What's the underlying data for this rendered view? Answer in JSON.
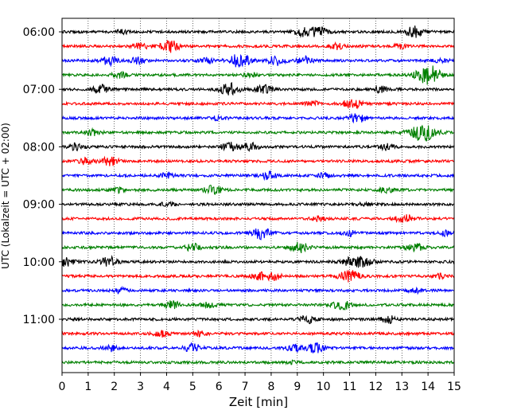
{
  "chart_data": {
    "type": "line",
    "title": "",
    "xlabel": "Zeit  [min]",
    "ylabel": "UTC (Lokalzeit = UTC + 02:00)",
    "xlim": [
      0,
      15
    ],
    "x_ticks": [
      0,
      1,
      2,
      3,
      4,
      5,
      6,
      7,
      8,
      9,
      10,
      11,
      12,
      13,
      14,
      15
    ],
    "grid": "vertical dotted lines at each minute",
    "row_interval_minutes": 15,
    "y_tick_labels": [
      "06:00",
      "07:00",
      "08:00",
      "09:00",
      "10:00",
      "11:00"
    ],
    "color_cycle": [
      "#000000",
      "#ff0000",
      "#0000ff",
      "#008000"
    ],
    "traces": [
      {
        "start": "06:00",
        "color": "#000000",
        "events": [
          [
            2.3,
            0.25
          ],
          [
            9.2,
            0.55
          ],
          [
            9.8,
            0.65
          ],
          [
            13.5,
            0.7
          ]
        ]
      },
      {
        "start": "06:15",
        "color": "#ff0000",
        "events": [
          [
            3.0,
            0.4
          ],
          [
            4.1,
            0.8
          ],
          [
            10.5,
            0.4
          ],
          [
            12.9,
            0.3
          ]
        ]
      },
      {
        "start": "06:30",
        "color": "#0000ff",
        "events": [
          [
            1.8,
            0.55
          ],
          [
            2.9,
            0.4
          ],
          [
            5.6,
            0.4
          ],
          [
            6.8,
            0.9
          ],
          [
            8.2,
            0.6
          ],
          [
            9.3,
            0.5
          ],
          [
            14.5,
            0.3
          ]
        ]
      },
      {
        "start": "06:45",
        "color": "#008000",
        "events": [
          [
            2.2,
            0.4
          ],
          [
            7.2,
            0.3
          ],
          [
            13.9,
            0.9
          ],
          [
            14.2,
            0.6
          ]
        ]
      },
      {
        "start": "07:00",
        "color": "#000000",
        "events": [
          [
            1.5,
            0.55
          ],
          [
            6.4,
            0.8
          ],
          [
            7.7,
            0.6
          ],
          [
            12.2,
            0.4
          ]
        ]
      },
      {
        "start": "07:15",
        "color": "#ff0000",
        "events": [
          [
            9.6,
            0.35
          ],
          [
            11.1,
            0.65
          ]
        ]
      },
      {
        "start": "07:30",
        "color": "#0000ff",
        "events": [
          [
            6.0,
            0.3
          ],
          [
            11.3,
            0.6
          ]
        ]
      },
      {
        "start": "07:45",
        "color": "#008000",
        "events": [
          [
            1.2,
            0.4
          ],
          [
            13.8,
            1.2
          ]
        ]
      },
      {
        "start": "08:00",
        "color": "#000000",
        "events": [
          [
            0.6,
            0.5
          ],
          [
            6.4,
            0.55
          ],
          [
            7.2,
            0.5
          ],
          [
            12.4,
            0.4
          ]
        ]
      },
      {
        "start": "08:15",
        "color": "#ff0000",
        "events": [
          [
            0.9,
            0.4
          ],
          [
            1.8,
            0.6
          ]
        ]
      },
      {
        "start": "08:30",
        "color": "#0000ff",
        "events": [
          [
            4.0,
            0.3
          ],
          [
            7.9,
            0.5
          ],
          [
            10.0,
            0.35
          ]
        ]
      },
      {
        "start": "08:45",
        "color": "#008000",
        "events": [
          [
            2.1,
            0.35
          ],
          [
            5.8,
            0.6
          ],
          [
            12.4,
            0.35
          ]
        ]
      },
      {
        "start": "09:00",
        "color": "#000000",
        "events": [
          [
            4.0,
            0.25
          ],
          [
            11.6,
            0.25
          ]
        ]
      },
      {
        "start": "09:15",
        "color": "#ff0000",
        "events": [
          [
            9.8,
            0.3
          ],
          [
            13.1,
            0.6
          ]
        ]
      },
      {
        "start": "09:30",
        "color": "#0000ff",
        "events": [
          [
            7.6,
            0.75
          ],
          [
            11.0,
            0.35
          ],
          [
            14.7,
            0.35
          ]
        ]
      },
      {
        "start": "09:45",
        "color": "#008000",
        "events": [
          [
            5.0,
            0.45
          ],
          [
            9.1,
            0.65
          ],
          [
            13.5,
            0.55
          ]
        ]
      },
      {
        "start": "10:00",
        "color": "#000000",
        "events": [
          [
            0.1,
            0.6
          ],
          [
            1.8,
            0.65
          ],
          [
            11.1,
            0.65
          ],
          [
            11.6,
            0.55
          ]
        ]
      },
      {
        "start": "10:15",
        "color": "#ff0000",
        "events": [
          [
            7.5,
            0.5
          ],
          [
            8.1,
            0.5
          ],
          [
            11.0,
            0.8
          ],
          [
            14.5,
            0.35
          ]
        ]
      },
      {
        "start": "10:30",
        "color": "#0000ff",
        "events": [
          [
            2.2,
            0.35
          ],
          [
            13.5,
            0.3
          ]
        ]
      },
      {
        "start": "10:45",
        "color": "#008000",
        "events": [
          [
            4.2,
            0.5
          ],
          [
            5.6,
            0.35
          ],
          [
            10.7,
            0.65
          ]
        ]
      },
      {
        "start": "11:00",
        "color": "#000000",
        "events": [
          [
            9.4,
            0.5
          ],
          [
            12.5,
            0.45
          ]
        ]
      },
      {
        "start": "11:15",
        "color": "#ff0000",
        "events": [
          [
            3.8,
            0.45
          ],
          [
            5.3,
            0.3
          ]
        ]
      },
      {
        "start": "11:30",
        "color": "#0000ff",
        "events": [
          [
            1.9,
            0.4
          ],
          [
            5.0,
            0.55
          ],
          [
            8.9,
            0.5
          ],
          [
            9.7,
            0.6
          ]
        ]
      },
      {
        "start": "11:45",
        "color": "#008000",
        "events": [
          [
            8.8,
            0.15
          ]
        ]
      }
    ]
  }
}
